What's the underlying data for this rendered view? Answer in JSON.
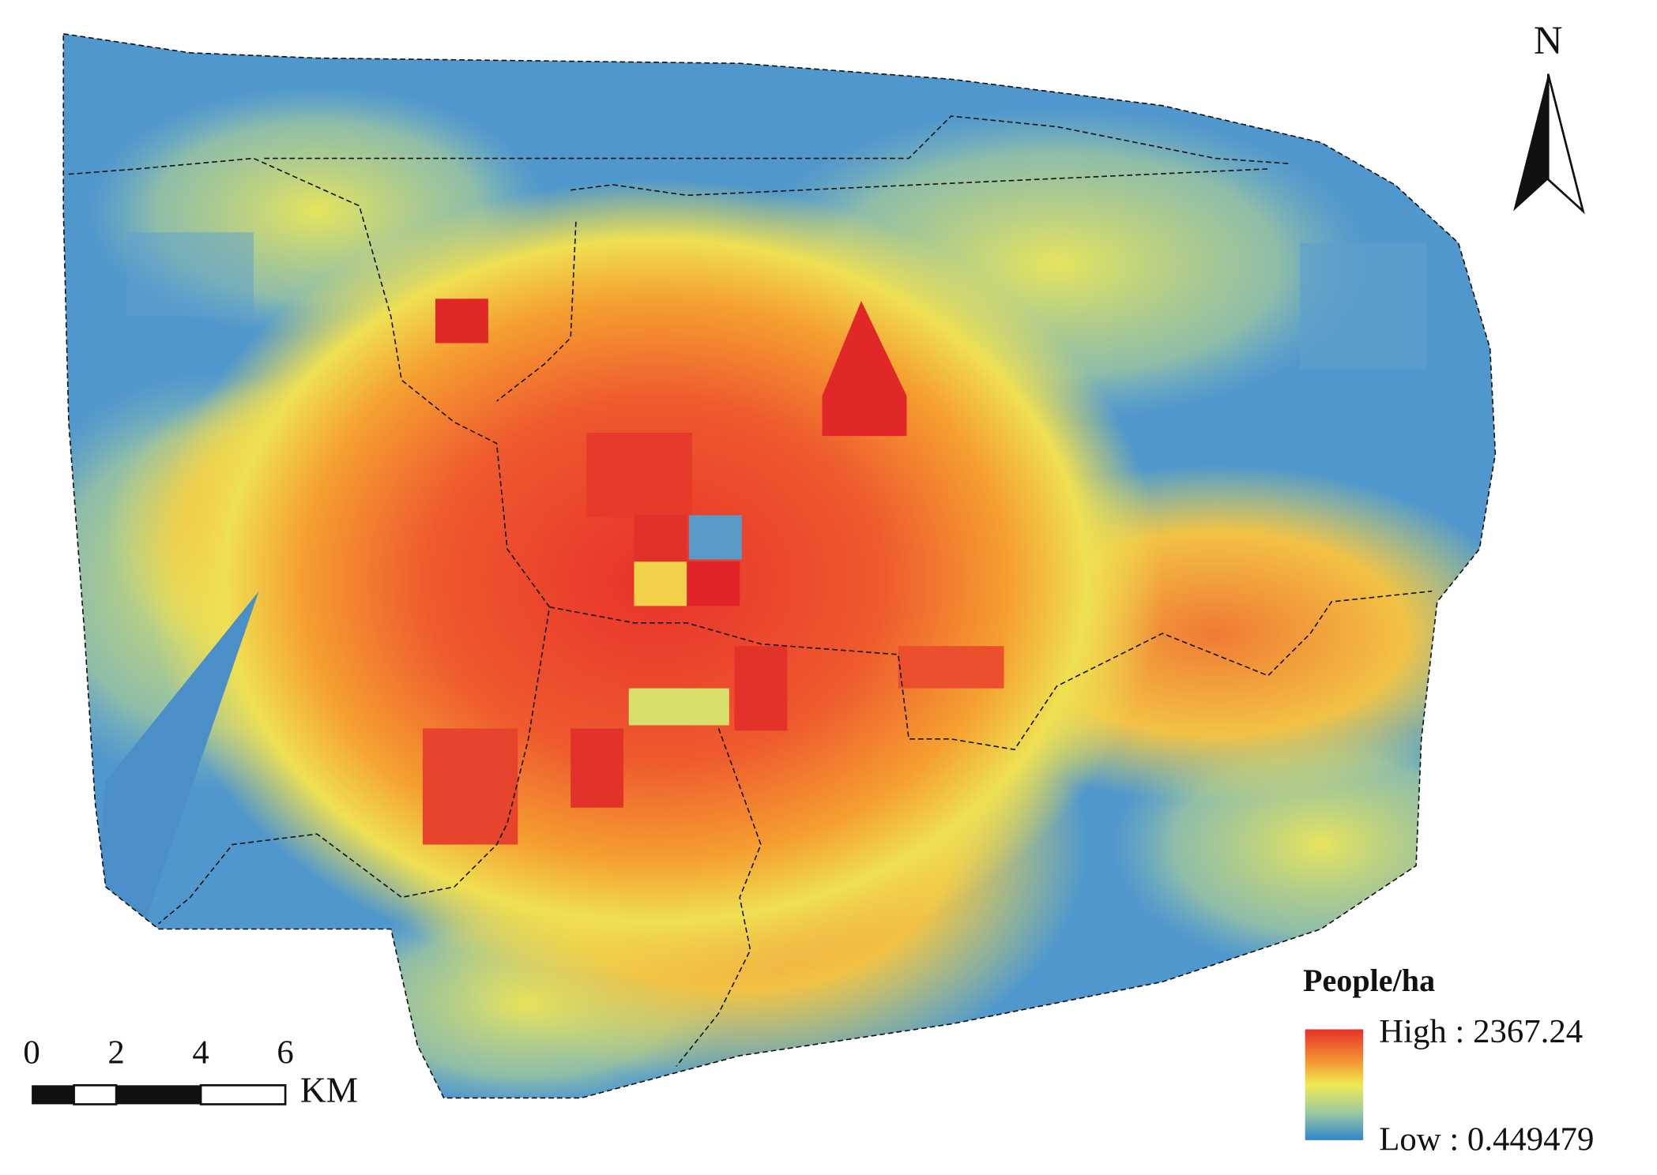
{
  "map": {
    "north_label": "N",
    "legend": {
      "title": "People/ha",
      "high_label": "High : 2367.24",
      "low_label": "Low : 0.449479"
    },
    "scale_bar": {
      "ticks": [
        "0",
        "2",
        "4",
        "6"
      ],
      "unit": "KM"
    }
  }
}
